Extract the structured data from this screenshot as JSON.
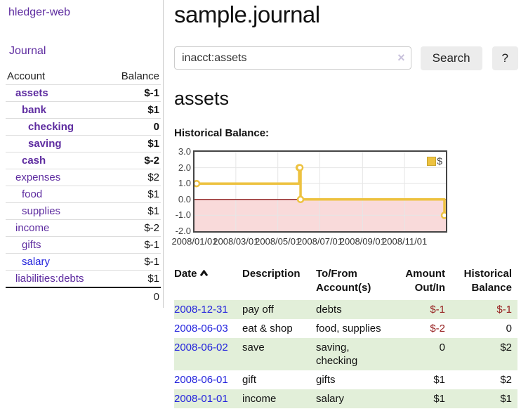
{
  "sidebar": {
    "brand": "hledger-web",
    "nav": {
      "journal": "Journal"
    },
    "headers": {
      "account": "Account",
      "balance": "Balance"
    },
    "accounts": [
      {
        "name": "assets",
        "balance": "$-1",
        "indent": 1,
        "bold": true,
        "neg": "hard"
      },
      {
        "name": "bank",
        "balance": "$1",
        "indent": 2,
        "bold": true,
        "neg": "none"
      },
      {
        "name": "checking",
        "balance": "0",
        "indent": 3,
        "bold": true,
        "neg": "none"
      },
      {
        "name": "saving",
        "balance": "$1",
        "indent": 3,
        "bold": true,
        "neg": "none"
      },
      {
        "name": "cash",
        "balance": "$-2",
        "indent": 2,
        "bold": true,
        "neg": "hard"
      },
      {
        "name": "expenses",
        "balance": "$2",
        "indent": 1,
        "bold": false,
        "neg": "none"
      },
      {
        "name": "food",
        "balance": "$1",
        "indent": 2,
        "bold": false,
        "neg": "none"
      },
      {
        "name": "supplies",
        "balance": "$1",
        "indent": 2,
        "bold": false,
        "neg": "none"
      },
      {
        "name": "income",
        "balance": "$-2",
        "indent": 1,
        "bold": false,
        "neg": "soft"
      },
      {
        "name": "gifts",
        "balance": "$-1",
        "indent": 2,
        "bold": false,
        "neg": "soft"
      },
      {
        "name": "salary",
        "balance": "$-1",
        "indent": 2,
        "bold": false,
        "neg": "soft",
        "blue": true
      },
      {
        "name": "liabilities:debts",
        "balance": "$1",
        "indent": 1,
        "bold": false,
        "neg": "none"
      }
    ],
    "total": "0"
  },
  "main": {
    "title": "sample.journal",
    "search": {
      "value": "inacct:assets",
      "clear_label": "×",
      "search_button": "Search",
      "help_button": "?"
    },
    "account_heading": "assets",
    "chart_title": "Historical Balance:"
  },
  "chart_data": {
    "type": "line",
    "step": true,
    "title": "Historical Balance of assets",
    "x_range": [
      "2008-01-01",
      "2008-12-31"
    ],
    "ylim": [
      -2,
      3
    ],
    "yticks": [
      {
        "value": 3,
        "label": "3.0"
      },
      {
        "value": 2,
        "label": "2.0"
      },
      {
        "value": 1,
        "label": "1.0"
      },
      {
        "value": 0,
        "label": "0.0"
      },
      {
        "value": -1,
        "label": "-1.0"
      },
      {
        "value": -2,
        "label": "-2.0"
      }
    ],
    "xticks": [
      {
        "date": "2008-01-01",
        "label": "2008/01/01"
      },
      {
        "date": "2008-03-01",
        "label": "2008/03/01"
      },
      {
        "date": "2008-05-01",
        "label": "2008/05/01"
      },
      {
        "date": "2008-07-01",
        "label": "2008/07/01"
      },
      {
        "date": "2008-09-01",
        "label": "2008/09/01"
      },
      {
        "date": "2008-11-01",
        "label": "2008/11/01"
      }
    ],
    "series": [
      {
        "name": "$",
        "color": "#edc240",
        "points": [
          {
            "date": "2008-01-01",
            "value": 1
          },
          {
            "date": "2008-06-01",
            "value": 2
          },
          {
            "date": "2008-06-02",
            "value": 2
          },
          {
            "date": "2008-06-03",
            "value": 0
          },
          {
            "date": "2008-12-31",
            "value": -1
          }
        ]
      }
    ],
    "legend_position": "top-right",
    "grid": true,
    "colors": {
      "negative_region": "#f9dada",
      "zero_line": "#8b1a1a",
      "grid": "#e6e6e6",
      "border": "#454545",
      "marker_fill": "#ffffff"
    }
  },
  "register": {
    "headers": {
      "date": "Date",
      "description": "Description",
      "tofrom_line1": "To/From",
      "tofrom_line2": "Account(s)",
      "amount_line1": "Amount",
      "amount_line2": "Out/In",
      "balance_line1": "Historical",
      "balance_line2": "Balance"
    },
    "rows": [
      {
        "date": "2008-12-31",
        "description": "pay off",
        "accounts": "debts",
        "amount": "$-1",
        "amount_neg": true,
        "balance": "$-1",
        "balance_neg": true
      },
      {
        "date": "2008-06-03",
        "description": "eat & shop",
        "accounts": "food, supplies",
        "amount": "$-2",
        "amount_neg": true,
        "balance": "0",
        "balance_neg": false
      },
      {
        "date": "2008-06-02",
        "description": "save",
        "accounts": "saving,\nchecking",
        "amount": "0",
        "amount_neg": false,
        "balance": "$2",
        "balance_neg": false
      },
      {
        "date": "2008-06-01",
        "description": "gift",
        "accounts": "gifts",
        "amount": "$1",
        "amount_neg": false,
        "balance": "$2",
        "balance_neg": false
      },
      {
        "date": "2008-01-01",
        "description": "income",
        "accounts": "salary",
        "amount": "$1",
        "amount_neg": false,
        "balance": "$1",
        "balance_neg": false
      }
    ]
  }
}
